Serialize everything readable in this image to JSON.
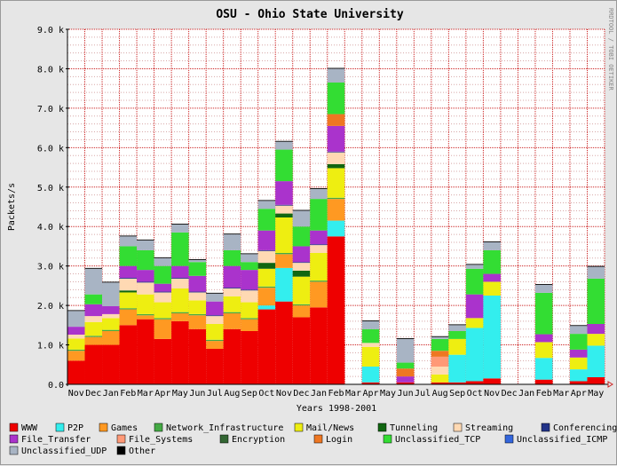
{
  "chart_data": {
    "type": "bar",
    "stacked": true,
    "title": "OSU - Ohio State University",
    "xlabel": "Years 1998-2001",
    "ylabel": "Packets/s",
    "credit": "RRDTOOL / TOBI OETIKER",
    "ylim": [
      0,
      9000
    ],
    "yticks": [
      0,
      1000,
      2000,
      3000,
      4000,
      5000,
      6000,
      7000,
      8000,
      9000
    ],
    "ytick_labels": [
      "0.0",
      "1.0 k",
      "2.0 k",
      "3.0 k",
      "4.0 k",
      "5.0 k",
      "6.0 k",
      "7.0 k",
      "8.0 k",
      "9.0 k"
    ],
    "grid": true,
    "legend_position": "bottom",
    "categories": [
      "Nov",
      "Dec",
      "Jan",
      "Feb",
      "Mar",
      "Apr",
      "May",
      "Jun",
      "Jul",
      "Aug",
      "Sep",
      "Oct",
      "Nov",
      "Dec",
      "Jan",
      "Feb",
      "Mar",
      "Apr",
      "May",
      "Jun",
      "Jul",
      "Aug",
      "Sep",
      "Oct",
      "Nov",
      "Dec",
      "Jan",
      "Feb",
      "Mar",
      "Apr",
      "May"
    ],
    "series": [
      {
        "name": "WWW",
        "color": "#ee0000",
        "values": [
          600,
          1000,
          1000,
          1500,
          1650,
          1150,
          1600,
          1400,
          900,
          1400,
          1350,
          1900,
          2100,
          1700,
          1950,
          3750,
          0,
          50,
          0,
          50,
          0,
          50,
          50,
          80,
          150,
          0,
          0,
          120,
          0,
          80,
          180
        ]
      },
      {
        "name": "P2P",
        "color": "#33eeee",
        "values": [
          0,
          0,
          0,
          0,
          0,
          0,
          0,
          0,
          0,
          0,
          0,
          100,
          850,
          0,
          0,
          400,
          0,
          400,
          0,
          0,
          0,
          0,
          700,
          1350,
          2100,
          0,
          0,
          550,
          0,
          300,
          800
        ]
      },
      {
        "name": "Games",
        "color": "#ff9922",
        "values": [
          250,
          200,
          350,
          400,
          100,
          500,
          200,
          350,
          200,
          400,
          300,
          450,
          350,
          300,
          650,
          550,
          0,
          0,
          0,
          0,
          0,
          0,
          0,
          0,
          0,
          0,
          0,
          0,
          0,
          0,
          0
        ]
      },
      {
        "name": "Network_Infrastructure",
        "color": "#44aa44",
        "values": [
          30,
          30,
          30,
          30,
          30,
          30,
          30,
          30,
          30,
          30,
          30,
          30,
          30,
          30,
          30,
          30,
          0,
          0,
          0,
          0,
          0,
          0,
          0,
          0,
          0,
          0,
          0,
          0,
          0,
          0,
          0
        ]
      },
      {
        "name": "Mail/News",
        "color": "#eeee11",
        "values": [
          280,
          350,
          300,
          400,
          500,
          400,
          600,
          350,
          400,
          400,
          400,
          450,
          900,
          700,
          700,
          750,
          0,
          500,
          0,
          0,
          0,
          200,
          400,
          250,
          350,
          0,
          0,
          400,
          0,
          300,
          300
        ]
      },
      {
        "name": "Tunneling",
        "color": "#116611",
        "values": [
          0,
          0,
          0,
          50,
          0,
          0,
          0,
          0,
          0,
          0,
          0,
          150,
          100,
          150,
          0,
          100,
          0,
          0,
          0,
          0,
          0,
          0,
          0,
          0,
          0,
          0,
          0,
          0,
          0,
          0,
          0
        ]
      },
      {
        "name": "Streaming",
        "color": "#ffd9b3",
        "values": [
          100,
          150,
          100,
          300,
          300,
          250,
          250,
          200,
          200,
          200,
          300,
          300,
          200,
          200,
          200,
          300,
          0,
          100,
          0,
          0,
          0,
          200,
          0,
          0,
          0,
          0,
          0,
          0,
          0,
          0,
          0
        ]
      },
      {
        "name": "Conferencing",
        "color": "#223388",
        "values": [
          0,
          0,
          0,
          20,
          20,
          20,
          20,
          20,
          20,
          20,
          20,
          20,
          20,
          20,
          20,
          20,
          0,
          0,
          0,
          0,
          0,
          0,
          0,
          0,
          0,
          0,
          0,
          0,
          0,
          0,
          0
        ]
      },
      {
        "name": "File_Transfer",
        "color": "#aa33cc",
        "values": [
          200,
          300,
          200,
          300,
          300,
          200,
          300,
          400,
          350,
          550,
          500,
          500,
          600,
          400,
          350,
          650,
          0,
          0,
          0,
          150,
          0,
          0,
          0,
          600,
          200,
          0,
          0,
          200,
          0,
          200,
          250
        ]
      },
      {
        "name": "File_Systems",
        "color": "#ff9977",
        "values": [
          0,
          0,
          0,
          0,
          0,
          0,
          0,
          0,
          0,
          0,
          0,
          0,
          0,
          0,
          0,
          0,
          0,
          0,
          0,
          0,
          0,
          250,
          0,
          0,
          0,
          0,
          0,
          0,
          0,
          0,
          0
        ]
      },
      {
        "name": "Encryption",
        "color": "#336633",
        "values": [
          0,
          0,
          0,
          0,
          0,
          0,
          0,
          0,
          0,
          0,
          0,
          0,
          0,
          0,
          0,
          0,
          0,
          0,
          0,
          0,
          0,
          0,
          0,
          0,
          0,
          0,
          0,
          0,
          0,
          0,
          0
        ]
      },
      {
        "name": "Login",
        "color": "#ee7722",
        "values": [
          0,
          0,
          0,
          0,
          0,
          0,
          0,
          0,
          0,
          0,
          0,
          0,
          0,
          0,
          0,
          300,
          0,
          0,
          0,
          200,
          0,
          150,
          0,
          0,
          0,
          0,
          0,
          0,
          0,
          0,
          0
        ]
      },
      {
        "name": "Unclassified_TCP",
        "color": "#33dd33",
        "values": [
          0,
          250,
          0,
          500,
          500,
          450,
          850,
          350,
          0,
          400,
          200,
          550,
          800,
          500,
          800,
          800,
          0,
          350,
          0,
          150,
          0,
          300,
          200,
          650,
          600,
          0,
          0,
          1050,
          0,
          400,
          1150
        ]
      },
      {
        "name": "Unclassified_ICMP",
        "color": "#3366dd",
        "values": [
          0,
          0,
          0,
          0,
          0,
          0,
          0,
          0,
          0,
          0,
          0,
          0,
          0,
          0,
          0,
          0,
          0,
          0,
          0,
          0,
          0,
          0,
          0,
          0,
          0,
          0,
          0,
          0,
          0,
          0,
          0
        ]
      },
      {
        "name": "Unclassified_UDP",
        "color": "#a8b4c4",
        "values": [
          400,
          650,
          600,
          250,
          250,
          200,
          200,
          50,
          200,
          400,
          200,
          200,
          200,
          400,
          250,
          350,
          0,
          200,
          0,
          600,
          0,
          50,
          150,
          100,
          200,
          0,
          0,
          200,
          0,
          200,
          300
        ]
      },
      {
        "name": "Other",
        "color": "#000000",
        "values": [
          20,
          20,
          20,
          20,
          20,
          20,
          20,
          20,
          20,
          20,
          20,
          20,
          20,
          20,
          20,
          20,
          0,
          20,
          0,
          20,
          0,
          20,
          20,
          20,
          20,
          0,
          0,
          20,
          0,
          20,
          20
        ]
      }
    ]
  }
}
